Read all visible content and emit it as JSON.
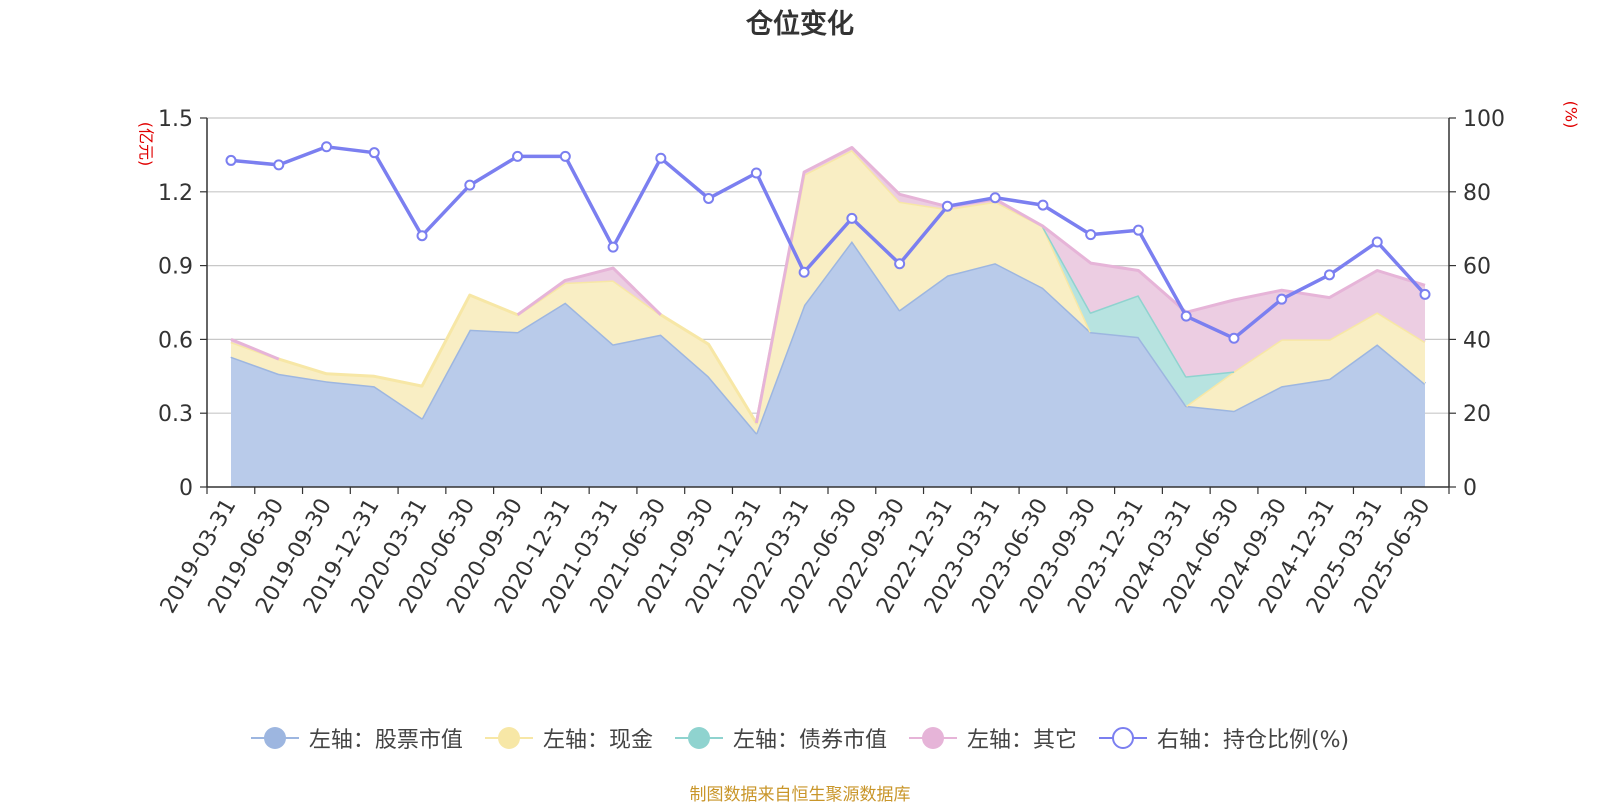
{
  "title": "仓位变化",
  "source_note": "制图数据来自恒生聚源数据库",
  "chart_data": {
    "type": "area",
    "x": [
      "2019-03-31",
      "2019-06-30",
      "2019-09-30",
      "2019-12-31",
      "2020-03-31",
      "2020-06-30",
      "2020-09-30",
      "2020-12-31",
      "2021-03-31",
      "2021-06-30",
      "2021-09-30",
      "2021-12-31",
      "2022-03-31",
      "2022-06-30",
      "2022-09-30",
      "2022-12-31",
      "2023-03-31",
      "2023-06-30",
      "2023-09-30",
      "2023-12-31",
      "2024-03-31",
      "2024-06-30",
      "2024-09-30",
      "2024-12-31",
      "2025-03-31",
      "2025-06-30"
    ],
    "left_axis": {
      "unit": "(亿元)",
      "ylim": [
        0,
        1.5
      ],
      "ticks": [
        "0",
        "0.3",
        "0.6",
        "0.9",
        "1.2",
        "1.5"
      ]
    },
    "right_axis": {
      "unit": "(%)",
      "ylim": [
        0,
        100
      ],
      "ticks": [
        "0",
        "20",
        "40",
        "60",
        "80",
        "100"
      ]
    },
    "stacked": true,
    "series": [
      {
        "name": "左轴：股票市值",
        "axis": "left",
        "color": "#9db6e0",
        "fill": "#b9cbea",
        "values": [
          0.53,
          0.46,
          0.43,
          0.41,
          0.28,
          0.64,
          0.63,
          0.75,
          0.58,
          0.62,
          0.45,
          0.22,
          0.74,
          1.0,
          0.72,
          0.86,
          0.91,
          0.81,
          0.63,
          0.61,
          0.33,
          0.31,
          0.41,
          0.44,
          0.58,
          0.42
        ]
      },
      {
        "name": "左轴：现金",
        "axis": "left",
        "color": "#f7e7a6",
        "fill": "#f9eec4",
        "values": [
          0.06,
          0.06,
          0.03,
          0.04,
          0.13,
          0.14,
          0.07,
          0.08,
          0.26,
          0.08,
          0.13,
          0.04,
          0.53,
          0.37,
          0.44,
          0.27,
          0.25,
          0.25,
          0.0,
          0.0,
          0.0,
          0.16,
          0.19,
          0.16,
          0.13,
          0.17
        ]
      },
      {
        "name": "左轴：债券市值",
        "axis": "left",
        "color": "#8fd3cf",
        "fill": "#b7e3e0",
        "values": [
          0,
          0,
          0,
          0,
          0,
          0,
          0,
          0,
          0,
          0,
          0,
          0,
          0,
          0,
          0,
          0,
          0,
          0,
          0.08,
          0.17,
          0.12,
          0.0,
          0.0,
          0.0,
          0.0,
          0.0
        ]
      },
      {
        "name": "左轴：其它",
        "axis": "left",
        "color": "#e6b4d8",
        "fill": "#eccde2",
        "values": [
          0.01,
          0.0,
          0.0,
          0.0,
          0.0,
          0.0,
          0.0,
          0.01,
          0.05,
          0.0,
          0.0,
          0.0,
          0.01,
          0.01,
          0.03,
          0.01,
          0.01,
          0.0,
          0.2,
          0.1,
          0.26,
          0.29,
          0.2,
          0.17,
          0.17,
          0.23
        ]
      },
      {
        "name": "右轴：持仓比例(%)",
        "axis": "right",
        "type": "line",
        "color": "#7b7ff0",
        "values": [
          88.5,
          87.3,
          92.2,
          90.6,
          68.1,
          81.8,
          89.6,
          89.6,
          65.0,
          89.1,
          78.2,
          85.1,
          58.2,
          72.8,
          60.5,
          76.1,
          78.4,
          76.4,
          68.4,
          69.6,
          46.3,
          40.3,
          50.9,
          57.5,
          66.4,
          52.2
        ]
      }
    ],
    "legend_position": "bottom",
    "grid": true
  }
}
